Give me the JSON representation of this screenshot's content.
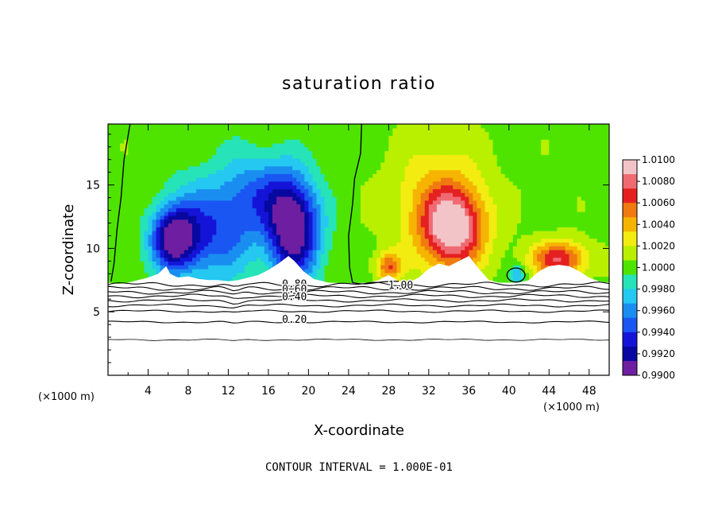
{
  "chart_data": {
    "type": "heatmap",
    "title": "saturation ratio",
    "xlabel": "X-coordinate",
    "ylabel": "Z-coordinate",
    "x_unit_left": "(×1000 m)",
    "x_unit_right": "(×1000 m)",
    "xlim": [
      0,
      50
    ],
    "ylim": [
      0,
      19.8
    ],
    "x_ticks": [
      "4",
      "8",
      "12",
      "16",
      "20",
      "24",
      "28",
      "32",
      "36",
      "40",
      "44",
      "48"
    ],
    "y_ticks": [
      "5",
      "10",
      "15"
    ],
    "footer": "CONTOUR INTERVAL = 1.000E-01",
    "colorbar": {
      "labels": [
        "1.0100",
        "1.0080",
        "1.0060",
        "1.0040",
        "1.0020",
        "1.0000",
        "0.9980",
        "0.9960",
        "0.9940",
        "0.9920",
        "0.9900"
      ],
      "colors": [
        "#f2c4c8",
        "#f06a72",
        "#e52020",
        "#f07a10",
        "#f6b400",
        "#f2ec10",
        "#b8f000",
        "#4ee400",
        "#26e3b8",
        "#24c8f0",
        "#1a8ef0",
        "#1a56f2",
        "#1414d8",
        "#0808a0",
        "#6e1ea0"
      ]
    },
    "contour_labels": [
      "0.80",
      "0.60",
      "0.40",
      "0.20",
      "1.00"
    ],
    "contour_levels": [
      0.2,
      0.4,
      0.6,
      0.8,
      1.0
    ],
    "terrain_top": [
      [
        0.0,
        7.3
      ],
      [
        1.0,
        7.2
      ],
      [
        2.0,
        7.3
      ],
      [
        3.0,
        7.5
      ],
      [
        4.0,
        7.7
      ],
      [
        5.0,
        8.0
      ],
      [
        5.8,
        8.6
      ],
      [
        6.2,
        8.0
      ],
      [
        7.0,
        7.7
      ],
      [
        8.0,
        7.8
      ],
      [
        9.0,
        7.6
      ],
      [
        10.0,
        7.5
      ],
      [
        11.0,
        7.5
      ],
      [
        12.0,
        7.4
      ],
      [
        13.0,
        7.5
      ],
      [
        14.0,
        7.7
      ],
      [
        15.0,
        7.9
      ],
      [
        16.0,
        8.3
      ],
      [
        17.0,
        8.8
      ],
      [
        18.0,
        9.4
      ],
      [
        18.6,
        9.0
      ],
      [
        19.5,
        8.2
      ],
      [
        20.5,
        7.6
      ],
      [
        22.0,
        7.3
      ],
      [
        24.0,
        7.25
      ],
      [
        26.0,
        7.3
      ],
      [
        27.0,
        7.5
      ],
      [
        28.0,
        7.9
      ],
      [
        29.0,
        7.4
      ],
      [
        30.0,
        7.3
      ],
      [
        31.0,
        7.7
      ],
      [
        32.0,
        8.4
      ],
      [
        33.0,
        8.8
      ],
      [
        34.0,
        8.6
      ],
      [
        35.0,
        9.0
      ],
      [
        36.0,
        9.4
      ],
      [
        37.0,
        8.4
      ],
      [
        38.0,
        7.5
      ],
      [
        39.0,
        7.3
      ],
      [
        40.0,
        7.3
      ],
      [
        41.0,
        7.3
      ],
      [
        42.0,
        7.5
      ],
      [
        43.0,
        8.2
      ],
      [
        44.0,
        8.6
      ],
      [
        45.0,
        8.7
      ],
      [
        46.0,
        8.6
      ],
      [
        47.0,
        8.2
      ],
      [
        48.0,
        7.7
      ],
      [
        49.0,
        7.4
      ],
      [
        50.0,
        7.3
      ]
    ],
    "field_blobs": [
      {
        "x": 6.5,
        "z": 10.8,
        "sx": 2.2,
        "sz": 2.4,
        "amp": -0.0095
      },
      {
        "x": 9.5,
        "z": 11.5,
        "sx": 3.5,
        "sz": 4.0,
        "amp": -0.0055
      },
      {
        "x": 13.0,
        "z": 12.5,
        "sx": 2.5,
        "sz": 4.5,
        "amp": -0.003
      },
      {
        "x": 18.5,
        "z": 11.5,
        "sx": 2.6,
        "sz": 3.8,
        "amp": -0.011
      },
      {
        "x": 16.0,
        "z": 14.5,
        "sx": 3.0,
        "sz": 3.0,
        "amp": -0.004
      },
      {
        "x": 34.5,
        "z": 11.5,
        "sx": 3.0,
        "sz": 3.0,
        "amp": 0.0082
      },
      {
        "x": 33.0,
        "z": 13.5,
        "sx": 4.5,
        "sz": 4.5,
        "amp": 0.0038
      },
      {
        "x": 28.0,
        "z": 8.6,
        "sx": 1.3,
        "sz": 1.1,
        "amp": 0.0055
      },
      {
        "x": 45.0,
        "z": 9.2,
        "sx": 2.8,
        "sz": 1.4,
        "amp": 0.007
      },
      {
        "x": 40.8,
        "z": 8.0,
        "sx": 0.7,
        "sz": 0.6,
        "amp": -0.004
      }
    ]
  }
}
